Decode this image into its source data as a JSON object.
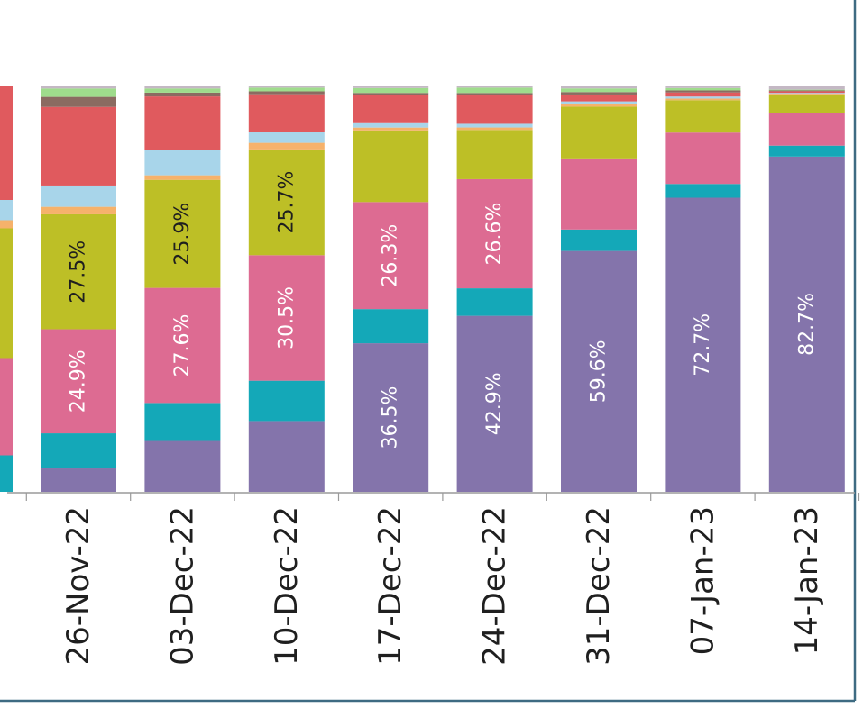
{
  "chart_data": {
    "type": "bar",
    "stacked": true,
    "orientation": "vertical",
    "percent_stacked": true,
    "ylim": [
      0,
      100
    ],
    "categories": [
      "26-Nov-22",
      "03-Dec-22",
      "10-Dec-22",
      "17-Dec-22",
      "24-Dec-22",
      "31-Dec-22",
      "07-Jan-23",
      "14-Jan-23"
    ],
    "series": [
      {
        "color": "#8474ab",
        "values": [
          5.6,
          12.2,
          17.2,
          36.5,
          42.9,
          59.6,
          72.7,
          82.7
        ]
      },
      {
        "color": "#14a8b8",
        "values": [
          8.4,
          9.1,
          9.8,
          8.4,
          6.7,
          5.3,
          3.4,
          2.7
        ]
      },
      {
        "color": "#dd6b92",
        "values": [
          24.9,
          27.6,
          30.5,
          26.3,
          26.6,
          17.6,
          12.7,
          8.0
        ]
      },
      {
        "color": "#bdbf26",
        "values": [
          27.5,
          25.9,
          25.7,
          17.6,
          12.0,
          12.8,
          8.0,
          4.6
        ]
      },
      {
        "color": "#f6b26b",
        "values": [
          1.8,
          1.1,
          1.6,
          0.7,
          0.6,
          0.6,
          0.4,
          0.2
        ]
      },
      {
        "color": "#a8d5ea",
        "values": [
          5.1,
          6.0,
          2.7,
          1.3,
          0.9,
          0.7,
          0.5,
          0.2
        ]
      },
      {
        "color": "#e05a5e",
        "values": [
          18.8,
          12.9,
          9.1,
          6.6,
          6.9,
          1.7,
          1.0,
          0.4
        ]
      },
      {
        "color": "#8b6b61",
        "values": [
          2.4,
          0.9,
          0.7,
          0.6,
          0.6,
          0.6,
          0.5,
          0.2
        ]
      },
      {
        "color": "#9fdc8c",
        "values": [
          2.0,
          1.0,
          0.9,
          1.2,
          1.3,
          0.9,
          0.6,
          0.2
        ]
      },
      {
        "color": "#c4b8c4",
        "values": [
          0.5,
          0.5,
          0.3,
          0.4,
          0.3,
          0.5,
          0.4,
          0.8
        ]
      }
    ],
    "data_labels": [
      [
        "",
        "",
        "24.9%",
        "27.5%",
        "",
        "",
        "",
        "",
        "",
        ""
      ],
      [
        "",
        "",
        "27.6%",
        "25.9%",
        "",
        "",
        "",
        "",
        "",
        ""
      ],
      [
        "",
        "",
        "30.5%",
        "25.7%",
        "",
        "",
        "",
        "",
        "",
        ""
      ],
      [
        "36.5%",
        "",
        "26.3%",
        "",
        "",
        "",
        "",
        "",
        "",
        ""
      ],
      [
        "42.9%",
        "",
        "26.6%",
        "",
        "",
        "",
        "",
        "",
        "",
        ""
      ],
      [
        "59.6%",
        "",
        "",
        "",
        "",
        "",
        "",
        "",
        "",
        ""
      ],
      [
        "72.7%",
        "",
        "",
        "",
        "",
        "",
        "",
        "",
        "",
        ""
      ],
      [
        "82.7%",
        "",
        "",
        "",
        "",
        "",
        "",
        "",
        "",
        ""
      ]
    ],
    "partial_bar_at_left_edge": {
      "color_order": [
        "#14a8b8",
        "#dd6b92",
        "#bdbf26",
        "#f6b26b",
        "#a8d5ea",
        "#e05a5e"
      ],
      "values": [
        9,
        24,
        32,
        2,
        5,
        28
      ]
    },
    "grid": false,
    "legend": "none",
    "title": "",
    "xlabel": "",
    "ylabel": ""
  },
  "colors": {
    "background": "#ffffff",
    "frame": "#3e6b82",
    "axis": "#9a9a9a",
    "label_dark": "#1f1f1f",
    "label_light": "#ffffff"
  }
}
